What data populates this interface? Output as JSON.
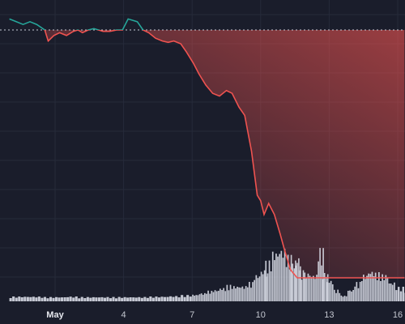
{
  "theme": {
    "background": "#1a1d2b",
    "gridline": "#262a3a",
    "above_baseline_color": "#26a69a",
    "below_baseline_color": "#ef5350",
    "volume_color": "#d8dbe6",
    "baseline_dash_color": "#c7cad4"
  },
  "chart_data": {
    "type": "line",
    "subtype": "baseline-area-with-volume",
    "x_tick_labels": [
      {
        "label": "May",
        "day": 1,
        "bold": true
      },
      {
        "label": "4",
        "day": 4
      },
      {
        "label": "7",
        "day": 7
      },
      {
        "label": "10",
        "day": 10
      },
      {
        "label": "13",
        "day": 13
      },
      {
        "label": "16",
        "day": 16
      }
    ],
    "baseline_value": 1.0,
    "ylim": [
      0,
      1.06
    ],
    "grid": true,
    "series": [
      {
        "values": [
          [
            -1.0,
            1.04
          ],
          [
            -0.7,
            1.03
          ],
          [
            -0.4,
            1.02
          ],
          [
            -0.1,
            1.03
          ],
          [
            0.2,
            1.02
          ],
          [
            0.55,
            1.0
          ],
          [
            0.7,
            0.96
          ],
          [
            0.95,
            0.98
          ],
          [
            1.2,
            0.99
          ],
          [
            1.5,
            0.98
          ],
          [
            1.8,
            0.995
          ],
          [
            2.0,
            1.0
          ],
          [
            2.2,
            0.99
          ],
          [
            2.45,
            1.0
          ],
          [
            2.7,
            1.005
          ],
          [
            2.9,
            1.0
          ],
          [
            3.1,
            0.995
          ],
          [
            3.4,
            0.995
          ],
          [
            3.7,
            1.0
          ],
          [
            3.95,
            1.0
          ],
          [
            4.2,
            1.04
          ],
          [
            4.4,
            1.035
          ],
          [
            4.6,
            1.03
          ],
          [
            4.85,
            1.0
          ],
          [
            5.1,
            0.99
          ],
          [
            5.4,
            0.97
          ],
          [
            5.7,
            0.96
          ],
          [
            5.95,
            0.955
          ],
          [
            6.2,
            0.96
          ],
          [
            6.5,
            0.95
          ],
          [
            6.75,
            0.92
          ],
          [
            7.05,
            0.88
          ],
          [
            7.3,
            0.84
          ],
          [
            7.6,
            0.8
          ],
          [
            7.9,
            0.77
          ],
          [
            8.2,
            0.76
          ],
          [
            8.5,
            0.78
          ],
          [
            8.75,
            0.77
          ],
          [
            9.05,
            0.72
          ],
          [
            9.3,
            0.69
          ],
          [
            9.6,
            0.56
          ],
          [
            9.85,
            0.4
          ],
          [
            10.0,
            0.38
          ],
          [
            10.15,
            0.33
          ],
          [
            10.35,
            0.37
          ],
          [
            10.6,
            0.33
          ],
          [
            10.85,
            0.26
          ],
          [
            11.05,
            0.2
          ],
          [
            11.3,
            0.13
          ],
          [
            11.6,
            0.1
          ],
          [
            11.9,
            0.1
          ],
          [
            12.2,
            0.1
          ],
          [
            12.55,
            0.1
          ],
          [
            12.85,
            0.1
          ],
          [
            13.2,
            0.1
          ],
          [
            13.6,
            0.1
          ],
          [
            14.0,
            0.1
          ],
          [
            14.5,
            0.1
          ],
          [
            15.0,
            0.1
          ],
          [
            15.5,
            0.1
          ],
          [
            16.0,
            0.1
          ],
          [
            16.3,
            0.1
          ]
        ]
      }
    ],
    "volume": [
      [
        -1.0,
        0.05
      ],
      [
        -0.5,
        0.05
      ],
      [
        0.0,
        0.05
      ],
      [
        0.5,
        0.045
      ],
      [
        1.0,
        0.045
      ],
      [
        1.5,
        0.05
      ],
      [
        2.0,
        0.045
      ],
      [
        2.5,
        0.045
      ],
      [
        3.0,
        0.045
      ],
      [
        3.5,
        0.045
      ],
      [
        4.0,
        0.045
      ],
      [
        4.5,
        0.045
      ],
      [
        5.0,
        0.05
      ],
      [
        5.5,
        0.05
      ],
      [
        6.0,
        0.055
      ],
      [
        6.5,
        0.065
      ],
      [
        7.0,
        0.07
      ],
      [
        7.3,
        0.085
      ],
      [
        7.6,
        0.11
      ],
      [
        7.9,
        0.12
      ],
      [
        8.2,
        0.14
      ],
      [
        8.5,
        0.17
      ],
      [
        8.8,
        0.16
      ],
      [
        9.1,
        0.16
      ],
      [
        9.4,
        0.2
      ],
      [
        9.7,
        0.28
      ],
      [
        10.0,
        0.33
      ],
      [
        10.2,
        0.42
      ],
      [
        10.5,
        0.52
      ],
      [
        10.8,
        0.55
      ],
      [
        11.1,
        0.48
      ],
      [
        11.3,
        0.4
      ],
      [
        11.5,
        0.46
      ],
      [
        11.7,
        0.32
      ],
      [
        11.9,
        0.3
      ],
      [
        12.2,
        0.28
      ],
      [
        12.5,
        0.55
      ],
      [
        12.7,
        0.3
      ],
      [
        12.9,
        0.22
      ],
      [
        13.2,
        0.12
      ],
      [
        13.5,
        0.06
      ],
      [
        13.8,
        0.12
      ],
      [
        14.1,
        0.2
      ],
      [
        14.4,
        0.28
      ],
      [
        14.7,
        0.32
      ],
      [
        15.0,
        0.3
      ],
      [
        15.3,
        0.28
      ],
      [
        15.6,
        0.2
      ],
      [
        15.9,
        0.15
      ],
      [
        16.3,
        0.12
      ]
    ]
  }
}
